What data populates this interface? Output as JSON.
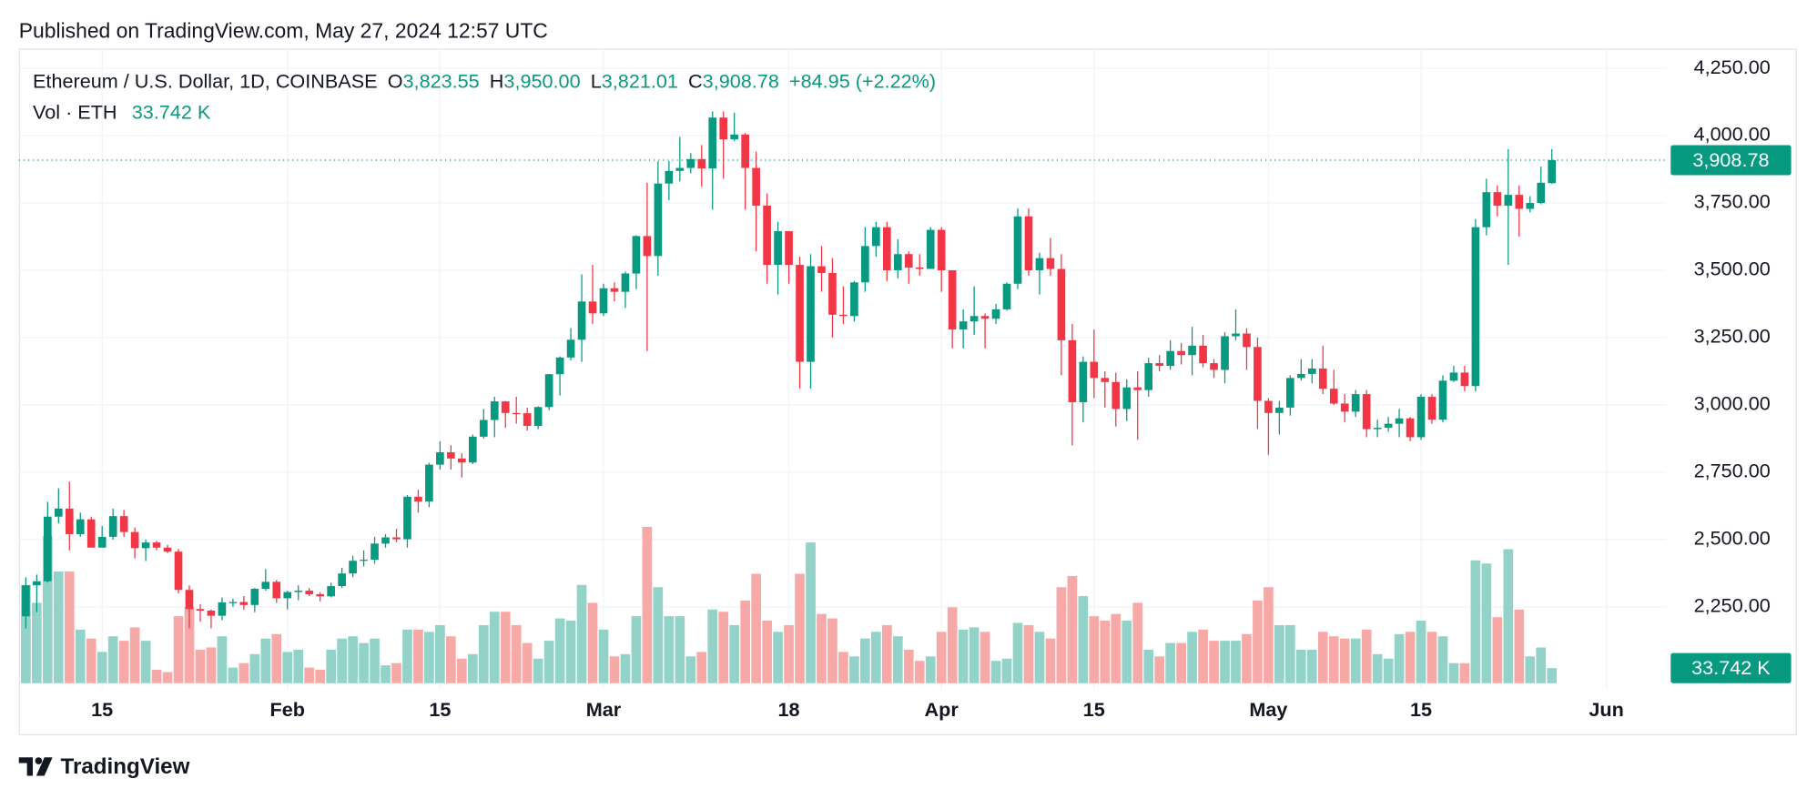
{
  "header": "Published on TradingView.com, May 27, 2024 12:57 UTC",
  "brand": "TradingView",
  "chart_data": {
    "type": "candlestick",
    "legend": {
      "symbol": "Ethereum / U.S. Dollar, 1D, COINBASE",
      "open_letter": "O",
      "open_value": "3,823.55",
      "high_letter": "H",
      "high_value": "3,950.00",
      "low_letter": "L",
      "low_value": "3,821.01",
      "close_letter": "C",
      "close_value": "3,908.78",
      "change": "+84.95 (+2.22%)",
      "volume_title": "Vol · ETH",
      "volume_value": "33.742 K"
    },
    "categories": [
      null,
      null,
      null,
      null,
      null,
      null,
      null,
      "15",
      null,
      null,
      null,
      null,
      null,
      null,
      null,
      null,
      null,
      null,
      null,
      null,
      null,
      null,
      null,
      null,
      "Feb",
      null,
      null,
      null,
      null,
      null,
      null,
      null,
      null,
      null,
      null,
      null,
      null,
      null,
      "15",
      null,
      null,
      null,
      null,
      null,
      null,
      null,
      null,
      null,
      null,
      null,
      null,
      null,
      null,
      "Mar",
      null,
      null,
      null,
      null,
      null,
      null,
      null,
      null,
      null,
      null,
      null,
      null,
      null,
      null,
      null,
      null,
      "18",
      null,
      null,
      null,
      null,
      null,
      null,
      null,
      null,
      null,
      null,
      null,
      null,
      null,
      "Apr",
      null,
      null,
      null,
      null,
      null,
      null,
      null,
      null,
      null,
      null,
      null,
      null,
      null,
      "15",
      null,
      null,
      null,
      null,
      null,
      null,
      null,
      null,
      null,
      null,
      null,
      null,
      null,
      null,
      null,
      "May",
      null,
      null,
      null,
      null,
      null,
      null,
      null,
      null,
      null,
      null,
      null,
      null,
      null,
      "15",
      null,
      null,
      null,
      null,
      null,
      null,
      null,
      null,
      null,
      null,
      null,
      null,
      null,
      null,
      null,
      null,
      "Jun",
      null,
      null,
      null,
      null
    ],
    "open": [
      2215,
      2330,
      2345,
      2585,
      2615,
      2520,
      2575,
      2470,
      2510,
      2587,
      2528,
      2468,
      2489,
      2470,
      2455,
      2313,
      2242,
      2236,
      2217,
      2267,
      2268,
      2257,
      2317,
      2343,
      2282,
      2305,
      2310,
      2297,
      2289,
      2327,
      2374,
      2421,
      2425,
      2485,
      2508,
      2501,
      2659,
      2641,
      2778,
      2824,
      2801,
      2786,
      2882,
      2944,
      3013,
      2970,
      2969,
      2922,
      2992,
      3114,
      3176,
      3242,
      3384,
      3340,
      3433,
      3420,
      3488,
      3627,
      3553,
      3822,
      3869,
      3880,
      3913,
      3878,
      4067,
      3986,
      4004,
      3880,
      3740,
      3520,
      3645,
      3520,
      3160,
      3515,
      3490,
      3335,
      3330,
      3455,
      3590,
      3660,
      3500,
      3560,
      3510,
      3505,
      3650,
      3500,
      3280,
      3310,
      3330,
      3320,
      3355,
      3450,
      3700,
      3500,
      3545,
      3505,
      3240,
      3010,
      3160,
      3100,
      3085,
      2985,
      3065,
      3055,
      3155,
      3145,
      3200,
      3185,
      3220,
      3155,
      3130,
      3255,
      3265,
      3215,
      3015,
      2970,
      2990,
      3100,
      3115,
      3135,
      3060,
      3005,
      2975,
      3040,
      2910,
      2915,
      2930,
      2950,
      2880,
      3030,
      2945,
      3090,
      3120,
      3070,
      3660,
      3790,
      3740,
      3780,
      3728,
      3750,
      3823.55,
      null,
      null,
      null,
      null,
      null,
      null,
      null,
      null,
      null
    ],
    "high": [
      2360,
      2370,
      2640,
      2690,
      2715,
      2600,
      2585,
      2550,
      2615,
      2610,
      2545,
      2500,
      2495,
      2480,
      2465,
      2330,
      2260,
      2240,
      2285,
      2280,
      2290,
      2320,
      2390,
      2350,
      2310,
      2330,
      2320,
      2305,
      2340,
      2395,
      2440,
      2460,
      2510,
      2520,
      2540,
      2665,
      2685,
      2785,
      2865,
      2850,
      2820,
      2890,
      2985,
      3030,
      3015,
      3030,
      2990,
      2995,
      3115,
      3180,
      3285,
      3485,
      3520,
      3450,
      3455,
      3495,
      3630,
      3825,
      3905,
      3905,
      3995,
      3935,
      3965,
      4090,
      4090,
      4085,
      4010,
      3940,
      3785,
      3680,
      3645,
      3550,
      3560,
      3590,
      3545,
      3440,
      3460,
      3660,
      3680,
      3680,
      3615,
      3570,
      3560,
      3660,
      3660,
      3500,
      3355,
      3440,
      3340,
      3375,
      3455,
      3730,
      3730,
      3565,
      3620,
      3560,
      3300,
      3180,
      3280,
      3125,
      3120,
      3095,
      3125,
      3175,
      3185,
      3240,
      3230,
      3290,
      3260,
      3170,
      3270,
      3355,
      3285,
      3250,
      3025,
      3015,
      3110,
      3170,
      3170,
      3220,
      3130,
      3040,
      3055,
      3055,
      2945,
      2955,
      2985,
      2955,
      3040,
      3040,
      3110,
      3145,
      3145,
      3690,
      3840,
      3815,
      3950,
      3815,
      3775,
      3885,
      3950,
      null,
      null,
      null,
      null,
      null,
      null,
      null,
      null,
      null
    ],
    "low": [
      2170,
      2230,
      2340,
      2560,
      2460,
      2510,
      2470,
      2470,
      2500,
      2510,
      2430,
      2420,
      2460,
      2450,
      2300,
      2170,
      2195,
      2170,
      2200,
      2250,
      2240,
      2230,
      2310,
      2265,
      2240,
      2275,
      2290,
      2270,
      2285,
      2320,
      2360,
      2400,
      2410,
      2470,
      2490,
      2470,
      2600,
      2620,
      2760,
      2760,
      2730,
      2780,
      2875,
      2880,
      2915,
      2930,
      2905,
      2910,
      2980,
      3035,
      3165,
      3160,
      3300,
      3330,
      3385,
      3360,
      3430,
      3200,
      3480,
      3760,
      3830,
      3860,
      3810,
      3725,
      3840,
      3980,
      3725,
      3570,
      3450,
      3410,
      3450,
      3060,
      3060,
      3420,
      3250,
      3300,
      3310,
      3420,
      3550,
      3460,
      3470,
      3450,
      3480,
      3505,
      3420,
      3210,
      3210,
      3260,
      3210,
      3300,
      3350,
      3430,
      3480,
      3410,
      3480,
      3110,
      2850,
      2935,
      3025,
      2990,
      2920,
      2940,
      2870,
      3030,
      3125,
      3130,
      3150,
      3110,
      3140,
      3100,
      3080,
      3240,
      3130,
      2910,
      2815,
      2890,
      2960,
      3090,
      3080,
      3040,
      3000,
      2935,
      2955,
      2880,
      2880,
      2900,
      2880,
      2865,
      2870,
      2930,
      2935,
      3085,
      3050,
      3050,
      3630,
      3700,
      3520,
      3625,
      3715,
      3745,
      3821.01,
      null,
      null,
      null,
      null,
      null,
      null,
      null,
      null,
      null
    ],
    "close": [
      2330,
      2345,
      2585,
      2615,
      2520,
      2575,
      2470,
      2510,
      2587,
      2528,
      2468,
      2489,
      2470,
      2455,
      2313,
      2242,
      2236,
      2217,
      2267,
      2268,
      2257,
      2317,
      2343,
      2282,
      2305,
      2310,
      2297,
      2289,
      2327,
      2374,
      2421,
      2425,
      2485,
      2508,
      2501,
      2659,
      2641,
      2778,
      2824,
      2801,
      2786,
      2882,
      2944,
      3013,
      2970,
      2969,
      2922,
      2992,
      3114,
      3176,
      3242,
      3384,
      3340,
      3433,
      3420,
      3488,
      3627,
      3553,
      3822,
      3869,
      3880,
      3913,
      3878,
      4067,
      3986,
      4004,
      3880,
      3740,
      3520,
      3645,
      3520,
      3160,
      3515,
      3490,
      3335,
      3330,
      3455,
      3590,
      3660,
      3500,
      3560,
      3510,
      3505,
      3650,
      3500,
      3280,
      3310,
      3330,
      3320,
      3355,
      3450,
      3700,
      3500,
      3545,
      3505,
      3240,
      3010,
      3160,
      3100,
      3085,
      2985,
      3065,
      3055,
      3155,
      3145,
      3200,
      3185,
      3220,
      3155,
      3130,
      3255,
      3265,
      3215,
      3015,
      2970,
      2990,
      3100,
      3115,
      3135,
      3060,
      3005,
      2975,
      3040,
      2910,
      2915,
      2930,
      2950,
      2880,
      3030,
      2945,
      3090,
      3120,
      3070,
      3660,
      3790,
      3740,
      3780,
      3728,
      3750,
      3825,
      3908.78,
      null,
      null,
      null,
      null,
      null,
      null,
      null,
      null,
      null
    ],
    "volume": [
      220,
      180,
      330,
      250,
      250,
      120,
      100,
      70,
      105,
      95,
      125,
      95,
      30,
      25,
      150,
      170,
      75,
      80,
      105,
      35,
      45,
      65,
      100,
      110,
      70,
      75,
      35,
      30,
      75,
      100,
      105,
      90,
      100,
      40,
      45,
      120,
      120,
      115,
      130,
      105,
      55,
      65,
      130,
      160,
      160,
      130,
      90,
      55,
      95,
      145,
      140,
      220,
      180,
      120,
      60,
      65,
      150,
      350,
      215,
      150,
      150,
      60,
      70,
      165,
      160,
      130,
      185,
      245,
      140,
      115,
      130,
      245,
      315,
      155,
      145,
      70,
      60,
      100,
      115,
      130,
      105,
      75,
      50,
      60,
      115,
      170,
      120,
      125,
      115,
      50,
      55,
      135,
      130,
      115,
      100,
      215,
      240,
      195,
      150,
      140,
      155,
      140,
      180,
      75,
      60,
      90,
      90,
      115,
      120,
      95,
      95,
      95,
      110,
      185,
      215,
      130,
      130,
      75,
      75,
      115,
      105,
      100,
      100,
      120,
      65,
      55,
      110,
      115,
      140,
      115,
      105,
      45,
      45,
      275,
      268,
      148,
      300,
      165,
      60,
      80,
      33.742,
      null,
      null,
      null,
      null,
      null,
      null,
      null,
      null,
      null
    ],
    "up_color": "#089981",
    "down_color": "#f23645",
    "up_volume_color": "#92d2c8",
    "down_volume_color": "#f7a9a7",
    "ylim": [
      1945,
      4323
    ],
    "yticks": [
      {
        "value": 2250,
        "label": "2,250.00"
      },
      {
        "value": 2500,
        "label": "2,500.00"
      },
      {
        "value": 2750,
        "label": "2,750.00"
      },
      {
        "value": 3000,
        "label": "3,000.00"
      },
      {
        "value": 3250,
        "label": "3,250.00"
      },
      {
        "value": 3500,
        "label": "3,500.00"
      },
      {
        "value": 3750,
        "label": "3,750.00"
      },
      {
        "value": 4000,
        "label": "4,000.00"
      },
      {
        "value": 4250,
        "label": "4,250.00"
      }
    ],
    "grid": true
  }
}
